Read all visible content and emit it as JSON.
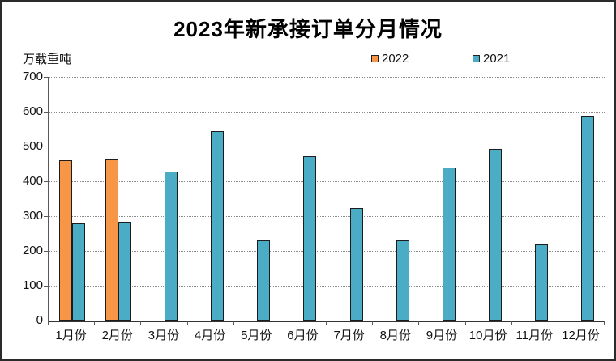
{
  "chart_data": {
    "type": "bar",
    "title": "2023年新承接订单分月情况",
    "ylabel": "万载重吨",
    "categories": [
      "1月份",
      "2月份",
      "3月份",
      "4月份",
      "5月份",
      "6月份",
      "7月份",
      "8月份",
      "9月份",
      "10月份",
      "11月份",
      "12月份"
    ],
    "series": [
      {
        "name": "2022",
        "color": "#F79646",
        "values": [
          460,
          462,
          null,
          null,
          null,
          null,
          null,
          null,
          null,
          null,
          null,
          null
        ]
      },
      {
        "name": "2021",
        "color": "#4BACC6",
        "values": [
          280,
          283,
          427,
          545,
          230,
          473,
          324,
          231,
          440,
          493,
          219,
          588
        ]
      }
    ],
    "ylim": [
      0,
      700
    ],
    "yticks": [
      0,
      100,
      200,
      300,
      400,
      500,
      600,
      700
    ],
    "grid": "horizontal-dotted",
    "legend_position": "top-center",
    "bar_border_color": "#1c1c1c",
    "axis_color": "#595959"
  }
}
